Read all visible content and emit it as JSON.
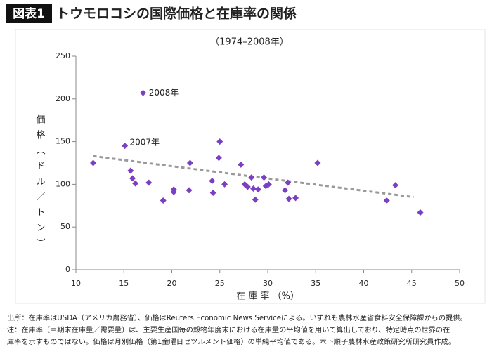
{
  "header": {
    "badge": "図表1",
    "title": "トウモロコシの国際価格と在庫率の関係"
  },
  "chart_data": {
    "type": "scatter",
    "subtitle": "（1974–2008年）",
    "x_label": "在 庫 率 （%）",
    "y_label": "価格（ドル／トン）",
    "color": "#7b3fc4",
    "x": [
      11.8,
      17.0,
      15.1,
      15.7,
      15.9,
      16.2,
      17.6,
      19.1,
      20.2,
      20.2,
      21.8,
      21.9,
      24.2,
      24.3,
      24.9,
      25.0,
      25.5,
      27.2,
      27.6,
      27.9,
      28.3,
      28.5,
      28.7,
      29.0,
      29.6,
      29.8,
      30.1,
      31.8,
      32.1,
      32.2,
      32.9,
      35.2,
      42.4,
      43.3,
      45.9
    ],
    "values": [
      125,
      207,
      145,
      116,
      107,
      101,
      102,
      81,
      94,
      91,
      93,
      125,
      104,
      90,
      131,
      150,
      100,
      123,
      100,
      97,
      108,
      95,
      82,
      94,
      108,
      98,
      100,
      93,
      102,
      83,
      84,
      125,
      81,
      99,
      67
    ],
    "trendline": {
      "x": [
        11.8,
        45.2
      ],
      "y": [
        133,
        85
      ],
      "color": "#999999"
    },
    "annotations": [
      {
        "text": "2008年",
        "x": 17.6,
        "y": 207
      },
      {
        "text": "2007年",
        "x": 15.6,
        "y": 149
      }
    ],
    "xlim": [
      10,
      50
    ],
    "xticks": [
      10,
      15,
      20,
      25,
      30,
      35,
      40,
      45,
      50
    ],
    "ylim": [
      0,
      250
    ],
    "yticks": [
      0,
      50,
      100,
      150,
      200,
      250
    ],
    "grid": false
  },
  "notes": [
    "出所：在庫率はUSDA（アメリカ農務省）、価格はReuters Economic News Serviceによる。いずれも農林水産省食料安全保障課からの提供。",
    "注：在庫率（＝期末在庫量／需要量）は、主要生産国毎の穀物年度末における在庫量の平均値を用いて算出しており、特定時点の世界の在",
    "庫率を示すものではない。価格は月別価格（第1金曜日セツルメント価格）の単純平均値である。木下順子農林水産政策研究所研究員作成。"
  ]
}
